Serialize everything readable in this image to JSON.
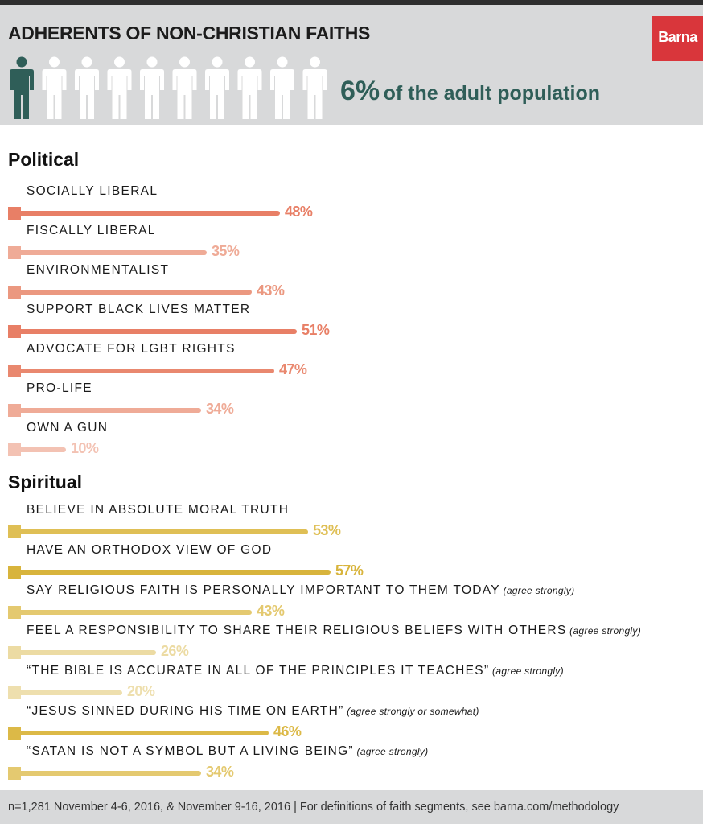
{
  "header": {
    "title": "ADHERENTS OF NON-CHRISTIAN FAITHS",
    "logo": "Barna",
    "stat_value": "6%",
    "stat_text": "of the adult population",
    "people_total": 10,
    "people_highlighted": 1
  },
  "colors": {
    "header_bg": "#d8d9da",
    "logo_red": "#d9363b",
    "stat_teal": "#2f5e58",
    "person_white": "#ffffff"
  },
  "chart_data": [
    {
      "type": "bar",
      "title": "Political",
      "xlim": [
        0,
        100
      ],
      "categories": [
        "SOCIALLY LIBERAL",
        "FISCALLY LIBERAL",
        "ENVIRONMENTALIST",
        "SUPPORT BLACK LIVES MATTER",
        "ADVOCATE FOR LGBT RIGHTS",
        "PRO-LIFE",
        "OWN A GUN"
      ],
      "notes": [
        "",
        "",
        "",
        "",
        "",
        "",
        ""
      ],
      "values": [
        48,
        35,
        43,
        51,
        47,
        34,
        10
      ],
      "value_labels": [
        "48%",
        "35%",
        "43%",
        "51%",
        "47%",
        "34%",
        "10%"
      ],
      "colors": [
        "#e87f66",
        "#efab97",
        "#eb9880",
        "#e87f66",
        "#e9886f",
        "#efab97",
        "#f3c2b3"
      ]
    },
    {
      "type": "bar",
      "title": "Spiritual",
      "xlim": [
        0,
        100
      ],
      "categories": [
        "BELIEVE IN ABSOLUTE MORAL TRUTH",
        "HAVE AN ORTHODOX VIEW OF GOD",
        "SAY RELIGIOUS FAITH IS PERSONALLY IMPORTANT TO THEM TODAY",
        "FEEL A RESPONSIBILITY TO SHARE THEIR RELIGIOUS BELIEFS WITH OTHERS",
        "“THE BIBLE IS ACCURATE IN ALL OF THE PRINCIPLES IT TEACHES”",
        "“JESUS SINNED DURING HIS TIME ON EARTH”",
        "“SATAN IS NOT A SYMBOL BUT A LIVING BEING”"
      ],
      "notes": [
        "",
        "",
        "(agree strongly)",
        "(agree strongly)",
        "(agree strongly)",
        "(agree strongly or somewhat)",
        "(agree strongly)"
      ],
      "values": [
        53,
        57,
        43,
        26,
        20,
        46,
        34
      ],
      "value_labels": [
        "53%",
        "57%",
        "43%",
        "26%",
        "20%",
        "46%",
        "34%"
      ],
      "colors": [
        "#dfbf55",
        "#d8b43c",
        "#e4c970",
        "#ecdba3",
        "#eedfae",
        "#dcb947",
        "#e4c970"
      ]
    }
  ],
  "footer": {
    "text": "n=1,281 November 4-6, 2016, & November 9-16, 2016 | For definitions of faith segments, see barna.com/methodology"
  }
}
